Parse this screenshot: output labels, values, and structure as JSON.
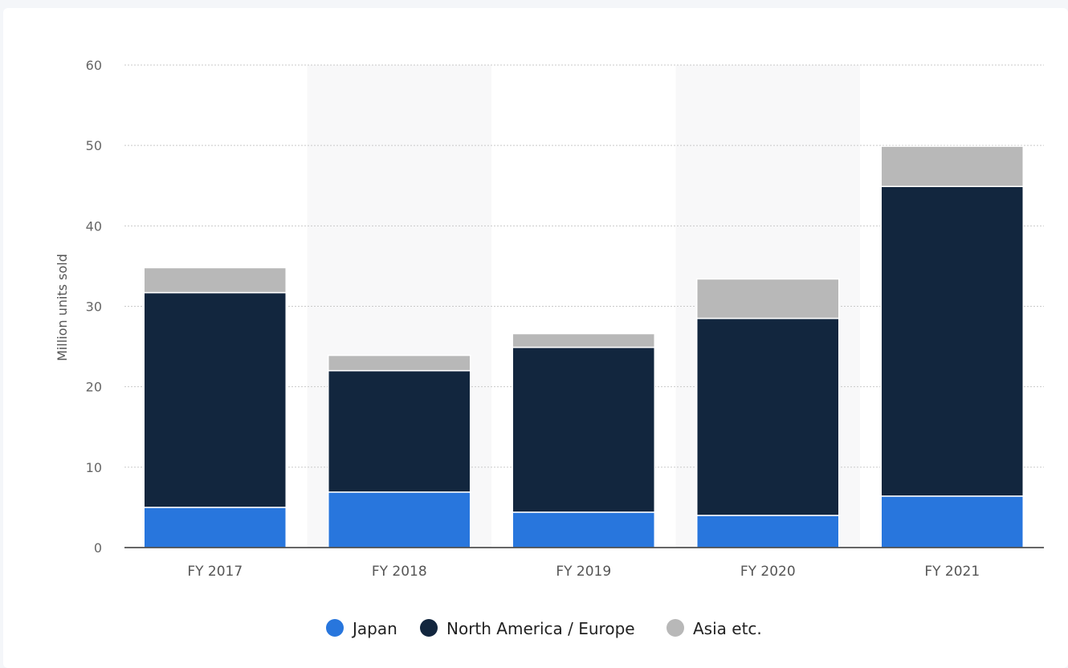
{
  "chart_data": {
    "type": "bar",
    "stacked": true,
    "title": "",
    "xlabel": "",
    "ylabel": "Million units sold",
    "ylim": [
      0,
      60
    ],
    "yticks": [
      0,
      10,
      20,
      30,
      40,
      50,
      60
    ],
    "grid": true,
    "legend_position": "bottom",
    "categories": [
      "FY 2017",
      "FY 2018",
      "FY 2019",
      "FY 2020",
      "FY 2021"
    ],
    "series": [
      {
        "name": "Japan",
        "color": "#2876dd",
        "values": [
          5.0,
          6.9,
          4.4,
          4.0,
          6.4
        ]
      },
      {
        "name": "North America / Europe",
        "color": "#12263e",
        "values": [
          26.7,
          15.1,
          20.5,
          24.5,
          38.5
        ]
      },
      {
        "name": "Asia etc.",
        "color": "#b8b8b8",
        "values": [
          3.1,
          1.9,
          1.7,
          4.9,
          5.0
        ]
      }
    ]
  }
}
